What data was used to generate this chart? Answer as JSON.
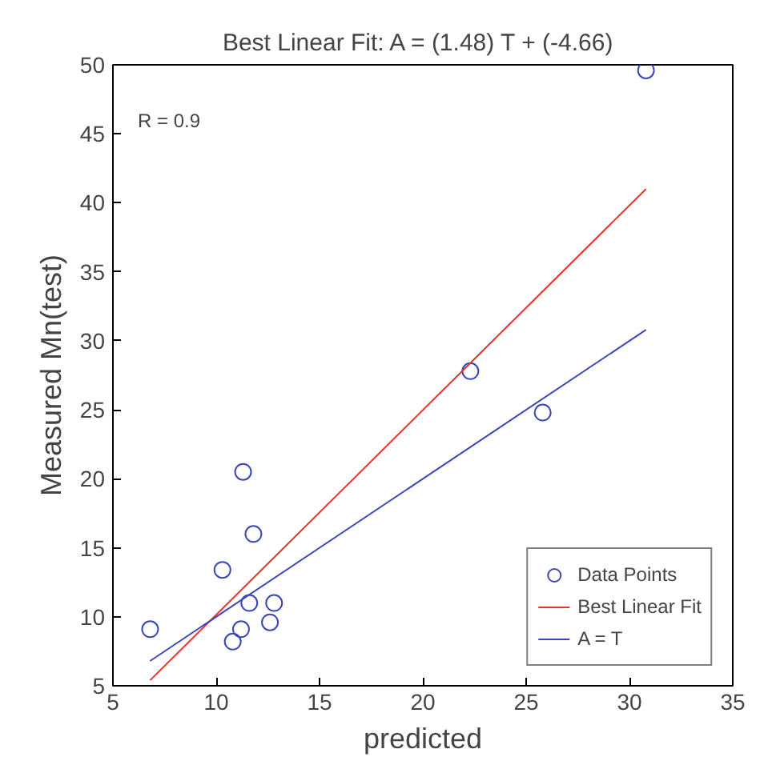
{
  "chart_data": {
    "type": "scatter",
    "title": "Best Linear Fit:  A = (1.48) T + (-4.66)",
    "xlabel": "predicted",
    "ylabel": "Measured Mn(test)",
    "xlim": [
      5,
      35
    ],
    "ylim": [
      5,
      50
    ],
    "xticks": [
      5,
      10,
      15,
      20,
      25,
      30,
      35
    ],
    "yticks": [
      5,
      10,
      15,
      20,
      25,
      30,
      35,
      40,
      45,
      50
    ],
    "grid": false,
    "legend": "bottom right",
    "annotations": [
      "R = 0.9"
    ],
    "series": [
      {
        "name": "Data Points",
        "marker": "circle",
        "color": "#3a47b8",
        "x": [
          6.8,
          10.3,
          11.3,
          11.8,
          11.6,
          12.8,
          12.6,
          11.2,
          10.8,
          22.3,
          25.8,
          30.8
        ],
        "values": [
          9.1,
          13.4,
          20.5,
          16.0,
          11.0,
          11.0,
          9.6,
          9.1,
          8.2,
          27.8,
          24.8,
          49.6
        ]
      },
      {
        "name": "Best Linear Fit",
        "type": "line",
        "line_style": "solid",
        "color": "#e8322b",
        "x": [
          6.8,
          30.8
        ],
        "values": [
          5.4,
          41.0
        ]
      },
      {
        "name": "A = T",
        "type": "line",
        "line_style": "solid",
        "color": "#3a47b8",
        "x": [
          6.8,
          30.8
        ],
        "values": [
          6.8,
          30.8
        ]
      }
    ]
  }
}
